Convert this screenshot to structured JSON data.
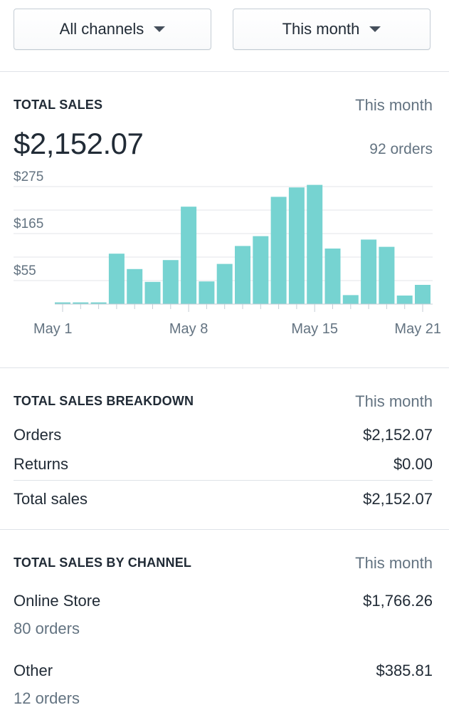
{
  "filters": {
    "channel_label": "All channels",
    "period_label": "This month"
  },
  "total_sales": {
    "title": "TOTAL SALES",
    "period": "This month",
    "amount": "$2,152.07",
    "orders": "92 orders"
  },
  "chart_data": {
    "type": "bar",
    "title": "",
    "xlabel": "",
    "ylabel": "",
    "x_tick_labels": [
      "May 1",
      "May 8",
      "May 15",
      "May 21"
    ],
    "y_tick_labels": [
      "$275",
      "$165",
      "$55"
    ],
    "y_ticks": [
      275,
      165,
      55
    ],
    "ylim": [
      0,
      300
    ],
    "grid": true,
    "bar_color": "#76d3d1",
    "categories": [
      "May 1",
      "May 2",
      "May 3",
      "May 4",
      "May 5",
      "May 6",
      "May 7",
      "May 8",
      "May 9",
      "May 10",
      "May 11",
      "May 12",
      "May 13",
      "May 14",
      "May 15",
      "May 16",
      "May 17",
      "May 18",
      "May 19",
      "May 20",
      "May 21"
    ],
    "values": [
      4,
      4,
      4,
      118,
      82,
      52,
      103,
      228,
      53,
      94,
      136,
      159,
      251,
      273,
      279,
      130,
      21,
      151,
      134,
      20,
      45
    ]
  },
  "breakdown": {
    "title": "TOTAL SALES BREAKDOWN",
    "period": "This month",
    "rows": [
      {
        "label": "Orders",
        "value": "$2,152.07"
      },
      {
        "label": "Returns",
        "value": "$0.00"
      },
      {
        "label": "Total sales",
        "value": "$2,152.07"
      }
    ]
  },
  "by_channel": {
    "title": "TOTAL SALES BY CHANNEL",
    "period": "This month",
    "channels": [
      {
        "name": "Online Store",
        "amount": "$1,766.26",
        "orders": "80 orders"
      },
      {
        "name": "Other",
        "amount": "$385.81",
        "orders": "12 orders"
      }
    ]
  }
}
